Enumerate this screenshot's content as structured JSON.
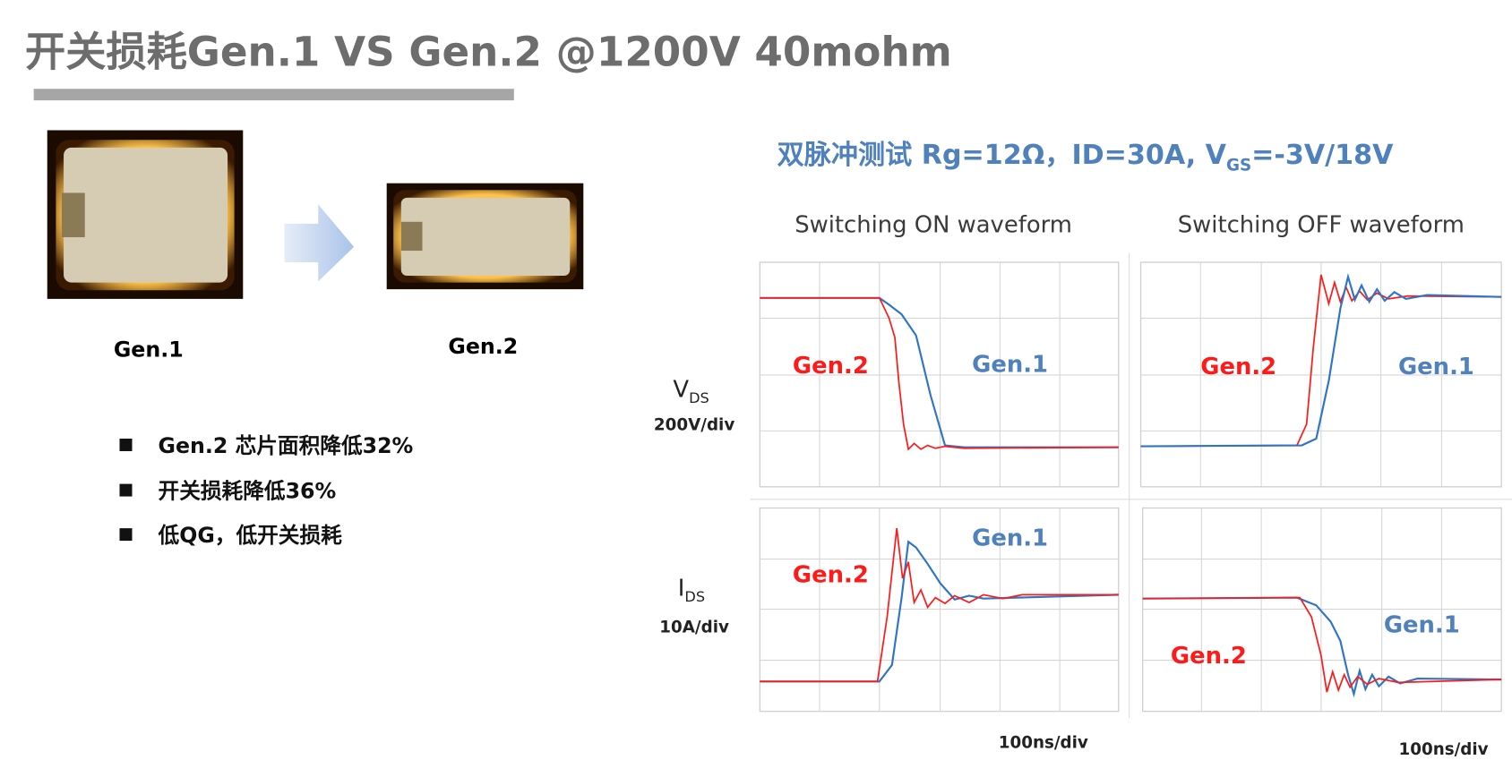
{
  "header": {
    "title": "开关损耗Gen.1 VS Gen.2 @1200V 40mohm"
  },
  "chips": [
    {
      "label": "Gen.1"
    },
    {
      "label": "Gen.2"
    }
  ],
  "bullets": [
    "Gen.2 芯片面积降低32%",
    "开关损耗降低36%",
    "低QG，低开关损耗"
  ],
  "test_condition": {
    "prefix": "双脉冲测试  Rg=12Ω，ID=30A, V",
    "sub": "GS",
    "suffix": "=-3V/18V"
  },
  "columns": [
    "Switching ON waveform",
    "Switching OFF waveform"
  ],
  "rows": [
    {
      "label": "V",
      "sub": "DS",
      "scale": "200V/div"
    },
    {
      "label": "I",
      "sub": "DS",
      "scale": "10A/div"
    }
  ],
  "time_scale": [
    "100ns/div",
    "100ns/div"
  ],
  "panels": [
    {
      "gen2": "Gen.2",
      "gen1": "Gen.1"
    },
    {
      "gen2": "Gen.2",
      "gen1": "Gen.1"
    },
    {
      "gen2": "Gen.2",
      "gen1": "Gen.1"
    },
    {
      "gen2": "Gen.2",
      "gen1": "Gen.1"
    }
  ]
}
